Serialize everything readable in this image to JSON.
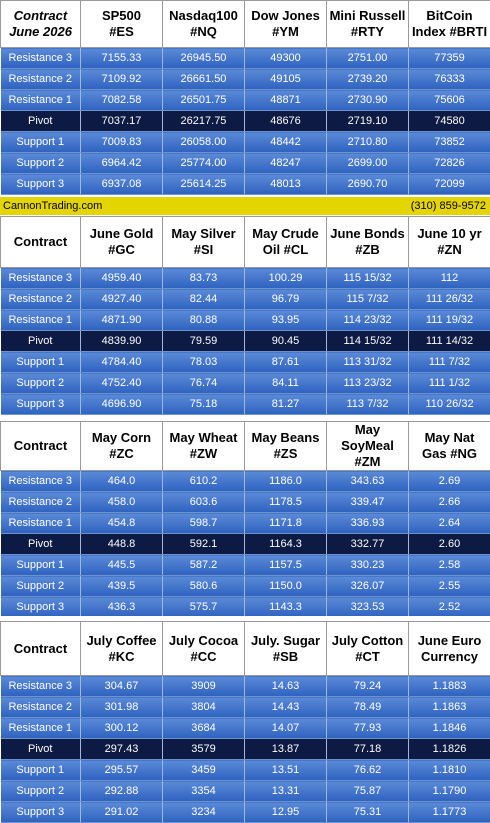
{
  "table1": {
    "header": [
      "Contract\nJune 2026",
      "SP500\n#ES",
      "Nasdaq100\n#NQ",
      "Dow Jones\n#YM",
      "Mini Russell\n#RTY",
      "BitCoin\nIndex #BRTI"
    ],
    "rows": [
      {
        "label": "Resistance 3",
        "values": [
          "7155.33",
          "26945.50",
          "49300",
          "2751.00",
          "77359"
        ]
      },
      {
        "label": "Resistance 2",
        "values": [
          "7109.92",
          "26661.50",
          "49105",
          "2739.20",
          "76333"
        ]
      },
      {
        "label": "Resistance 1",
        "values": [
          "7082.58",
          "26501.75",
          "48871",
          "2730.90",
          "75606"
        ]
      },
      {
        "label": "Pivot",
        "values": [
          "7037.17",
          "26217.75",
          "48676",
          "2719.10",
          "74580"
        ]
      },
      {
        "label": "Support 1",
        "values": [
          "7009.83",
          "26058.00",
          "48442",
          "2710.80",
          "73852"
        ]
      },
      {
        "label": "Support 2",
        "values": [
          "6964.42",
          "25774.00",
          "48247",
          "2699.00",
          "72826"
        ]
      },
      {
        "label": "Support 3",
        "values": [
          "6937.08",
          "25614.25",
          "48013",
          "2690.70",
          "72099"
        ]
      }
    ]
  },
  "banner": {
    "left": "CannonTrading.com",
    "right": "(310) 859-9572"
  },
  "table2": {
    "header": [
      "Contract",
      "June Gold\n#GC",
      "May Silver\n#SI",
      "May Crude\nOil #CL",
      "June Bonds\n#ZB",
      "June 10 yr\n#ZN"
    ],
    "rows": [
      {
        "label": "Resistance 3",
        "values": [
          "4959.40",
          "83.73",
          "100.29",
          "115 15/32",
          "112"
        ]
      },
      {
        "label": "Resistance 2",
        "values": [
          "4927.40",
          "82.44",
          "96.79",
          "115  7/32",
          "111 26/32"
        ]
      },
      {
        "label": "Resistance 1",
        "values": [
          "4871.90",
          "80.88",
          "93.95",
          "114 23/32",
          "111 19/32"
        ]
      },
      {
        "label": "Pivot",
        "values": [
          "4839.90",
          "79.59",
          "90.45",
          "114 15/32",
          "111 14/32"
        ]
      },
      {
        "label": "Support 1",
        "values": [
          "4784.40",
          "78.03",
          "87.61",
          "113 31/32",
          "111  7/32"
        ]
      },
      {
        "label": "Support 2",
        "values": [
          "4752.40",
          "76.74",
          "84.11",
          "113 23/32",
          "111  1/32"
        ]
      },
      {
        "label": "Support 3",
        "values": [
          "4696.90",
          "75.18",
          "81.27",
          "113  7/32",
          "110 26/32"
        ]
      }
    ]
  },
  "table3": {
    "header": [
      "Contract",
      "May Corn\n#ZC",
      "May  Wheat\n#ZW",
      "May Beans\n#ZS",
      "May\nSoyMeal\n#ZM",
      "May Nat\nGas #NG"
    ],
    "rows": [
      {
        "label": "Resistance 3",
        "values": [
          "464.0",
          "610.2",
          "1186.0",
          "343.63",
          "2.69"
        ]
      },
      {
        "label": "Resistance 2",
        "values": [
          "458.0",
          "603.6",
          "1178.5",
          "339.47",
          "2.66"
        ]
      },
      {
        "label": "Resistance 1",
        "values": [
          "454.8",
          "598.7",
          "1171.8",
          "336.93",
          "2.64"
        ]
      },
      {
        "label": "Pivot",
        "values": [
          "448.8",
          "592.1",
          "1164.3",
          "332.77",
          "2.60"
        ]
      },
      {
        "label": "Support 1",
        "values": [
          "445.5",
          "587.2",
          "1157.5",
          "330.23",
          "2.58"
        ]
      },
      {
        "label": "Support 2",
        "values": [
          "439.5",
          "580.6",
          "1150.0",
          "326.07",
          "2.55"
        ]
      },
      {
        "label": "Support 3",
        "values": [
          "436.3",
          "575.7",
          "1143.3",
          "323.53",
          "2.52"
        ]
      }
    ]
  },
  "table4": {
    "header": [
      "Contract",
      "July Coffee\n#KC",
      "July Cocoa\n#CC",
      "July. Sugar\n#SB",
      "July Cotton\n#CT",
      "June Euro\nCurrency"
    ],
    "rows": [
      {
        "label": "Resistance 3",
        "values": [
          "304.67",
          "3909",
          "14.63",
          "79.24",
          "1.1883"
        ]
      },
      {
        "label": "Resistance 2",
        "values": [
          "301.98",
          "3804",
          "14.43",
          "78.49",
          "1.1863"
        ]
      },
      {
        "label": "Resistance 1",
        "values": [
          "300.12",
          "3684",
          "14.07",
          "77.93",
          "1.1846"
        ]
      },
      {
        "label": "Pivot",
        "values": [
          "297.43",
          "3579",
          "13.87",
          "77.18",
          "1.1826"
        ]
      },
      {
        "label": "Support 1",
        "values": [
          "295.57",
          "3459",
          "13.51",
          "76.62",
          "1.1810"
        ]
      },
      {
        "label": "Support 2",
        "values": [
          "292.88",
          "3354",
          "13.31",
          "75.87",
          "1.1790"
        ]
      },
      {
        "label": "Support 3",
        "values": [
          "291.02",
          "3234",
          "12.95",
          "75.31",
          "1.1773"
        ]
      }
    ]
  }
}
